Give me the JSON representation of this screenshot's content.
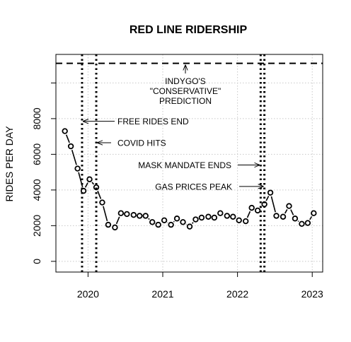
{
  "chart_data": {
    "type": "scatter",
    "title": "RED LINE RIDERSHIP",
    "xlabel": "",
    "ylabel": "RIDES PER DAY",
    "xlim": [
      2019.57,
      2023.14
    ],
    "ylim": [
      -600,
      11600
    ],
    "x_ticks": [
      2020,
      2021,
      2022,
      2023
    ],
    "y_ticks": [
      0,
      2000,
      4000,
      6000,
      8000
    ],
    "y_ticks_extra": [
      10000
    ],
    "grid": true,
    "series": [
      {
        "x": [
          2019.69,
          2019.77,
          2019.86,
          2019.94,
          2020.02,
          2020.11,
          2020.19,
          2020.27,
          2020.36,
          2020.44,
          2020.52,
          2020.61,
          2020.69,
          2020.77,
          2020.86,
          2020.94,
          2021.02,
          2021.11,
          2021.19,
          2021.27,
          2021.36,
          2021.44,
          2021.52,
          2021.61,
          2021.69,
          2021.77,
          2021.86,
          2021.94,
          2022.02,
          2022.11,
          2022.19,
          2022.27,
          2022.36,
          2022.44,
          2022.52,
          2022.61,
          2022.69,
          2022.77,
          2022.86,
          2022.94,
          2023.02
        ],
        "values": [
          7300,
          6450,
          5200,
          3950,
          4600,
          4150,
          3300,
          2050,
          1900,
          2700,
          2650,
          2600,
          2550,
          2550,
          2200,
          2050,
          2300,
          2050,
          2400,
          2200,
          1950,
          2350,
          2450,
          2500,
          2450,
          2700,
          2550,
          2500,
          2300,
          2250,
          3000,
          2850,
          3200,
          3850,
          2550,
          2500,
          3100,
          2400,
          2100,
          2150,
          2700
        ]
      }
    ],
    "reference_line": {
      "value": 11100,
      "label": [
        "INDYGO'S",
        "\"CONSERVATIVE\"",
        "PREDICTION"
      ]
    },
    "events": [
      {
        "date": 2019.92,
        "label": "FREE RIDES END",
        "arrow_y": 7850
      },
      {
        "date": 2020.11,
        "label": "COVID HITS",
        "arrow_y": 6650
      },
      {
        "date": 2022.31,
        "label": "MASK MANDATE ENDS",
        "arrow_y": 5400
      },
      {
        "date": 2022.36,
        "label": "GAS PRICES PEAK",
        "arrow_y": 4200
      }
    ]
  }
}
